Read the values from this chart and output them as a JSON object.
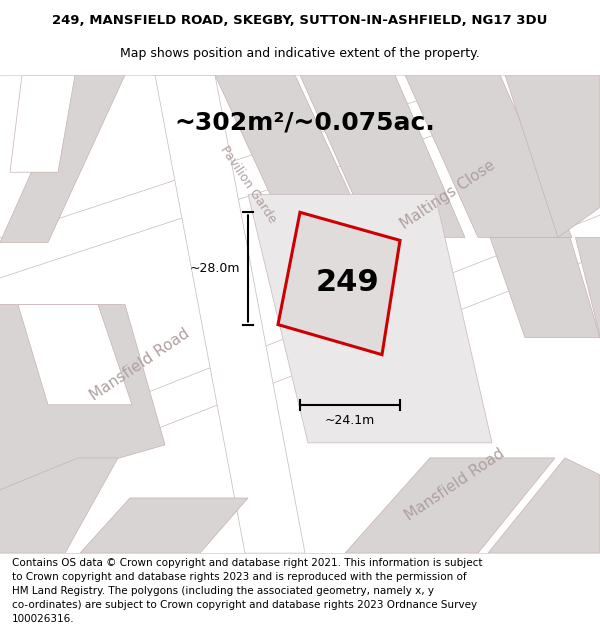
{
  "title_line1": "249, MANSFIELD ROAD, SKEGBY, SUTTON-IN-ASHFIELD, NG17 3DU",
  "title_line2": "Map shows position and indicative extent of the property.",
  "area_label": "~302m²/~0.075ac.",
  "plot_number": "249",
  "width_label": "~24.1m",
  "height_label": "~28.0m",
  "footer_lines": [
    "Contains OS data © Crown copyright and database right 2021. This information is subject",
    "to Crown copyright and database rights 2023 and is reproduced with the permission of",
    "HM Land Registry. The polygons (including the associated geometry, namely x, y",
    "co-ordinates) are subject to Crown copyright and database rights 2023 Ordnance Survey",
    "100026316."
  ],
  "bg_color": "#f0eeee",
  "road_fill": "#ffffff",
  "road_outline": "#c8b8b8",
  "block_fill": "#d8d4d4",
  "block_outline": "#c8b0b0",
  "plot_fill": "#e0dcdc",
  "plot_outline": "#cc0000",
  "road_label_color": "#b0a0a0",
  "title_fontsize": 9.5,
  "subtitle_fontsize": 9,
  "area_fontsize": 18,
  "plot_num_fontsize": 22,
  "dim_fontsize": 9,
  "road_fontsize": 11,
  "footer_fontsize": 7.5
}
